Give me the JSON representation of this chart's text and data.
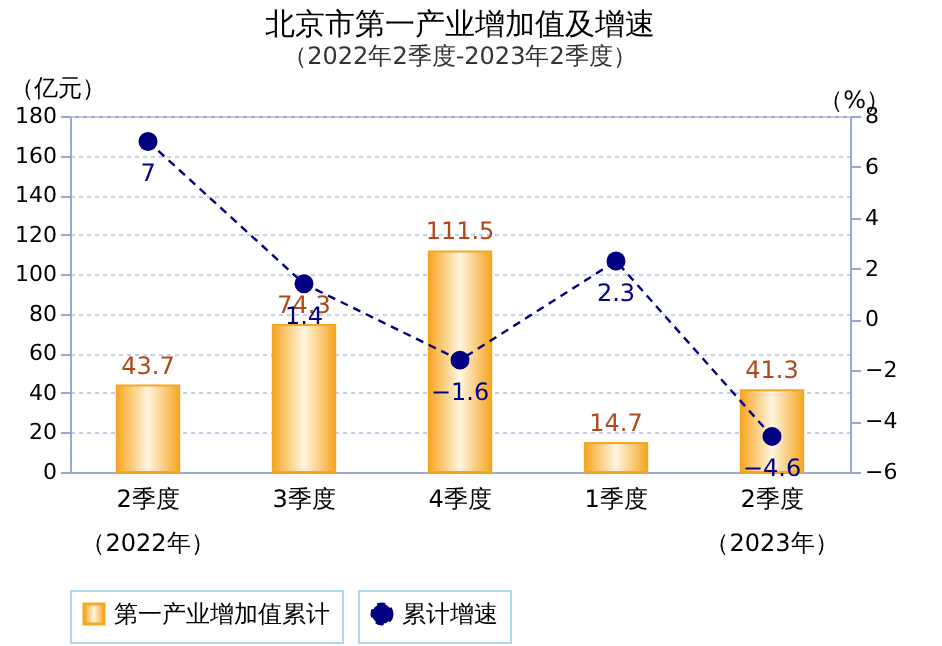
{
  "chart_data": {
    "type": "bar",
    "title": "北京市第一产业增加值及增速",
    "subtitle": "（2022年2季度-2023年2季度）",
    "ylabel": "（亿元）",
    "y2label": "（%）",
    "categories": [
      "2季度",
      "3季度",
      "4季度",
      "1季度",
      "2季度"
    ],
    "annotations": [
      "（2022年）",
      "（2023年）"
    ],
    "series": [
      {
        "name": "第一产业增加值累计",
        "color": "#f5a623",
        "values": [
          43.7,
          74.3,
          111.5,
          14.7,
          41.3
        ]
      },
      {
        "name": "累计增速",
        "type": "line",
        "axis": "y2",
        "color": "#000080",
        "values": [
          7,
          1.4,
          -1.6,
          2.3,
          -4.6
        ]
      }
    ],
    "ylim": [
      0,
      180
    ],
    "yticks": [
      0,
      20,
      40,
      60,
      80,
      100,
      120,
      140,
      160,
      180
    ],
    "y2lim": [
      -6,
      8
    ],
    "y2ticks": [
      -6,
      -4,
      -2,
      0,
      2,
      4,
      6,
      8
    ],
    "data_labels": true,
    "grid": "y",
    "legend": "bottom",
    "marker": "circle",
    "line_style": "dashed"
  }
}
